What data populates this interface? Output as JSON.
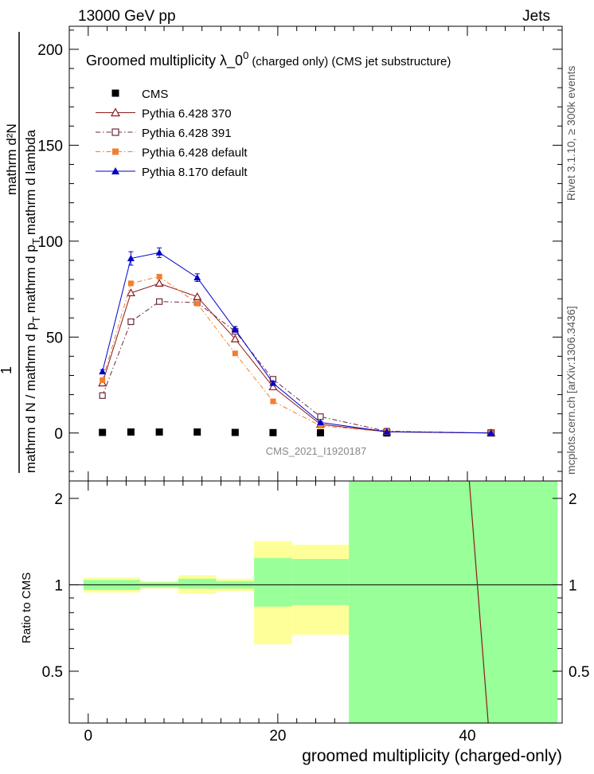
{
  "header": {
    "left": "13000 GeV pp",
    "right": "Jets"
  },
  "side_labels": {
    "rivet": "Rivet 3.1.10, ≥ 300k events",
    "mcplots": "mcplots.cern.ch [arXiv:1306.3436]"
  },
  "analysis_id": "CMS_2021_I1920187",
  "chart_data": [
    {
      "type": "line",
      "title_main": "Groomed multiplicity  λ_0",
      "title_sup": "0",
      "title_tail": "(charged only) (CMS jet substructure)",
      "ylabel_top": "mathrm d²N",
      "ylabel_top_sup": "2",
      "ylabel_main": "mathrm d N / mathrm d p",
      "ylabel_sub": "T",
      "ylabel_main2": "mathrm d p",
      "ylabel_sub2": "T",
      "ylabel_main3": "mathrm d lambda",
      "ylabel_prefix": "1",
      "xlim": [
        -2,
        50
      ],
      "ylim": [
        -25,
        212
      ],
      "yticks": [
        0,
        50,
        100,
        150,
        200
      ],
      "legend_position": "top-left",
      "series": [
        {
          "name": "CMS",
          "color": "#000000",
          "marker": "filled-square",
          "line": "none",
          "x": [
            1.5,
            4.5,
            7.5,
            11.5,
            15.5,
            19.5,
            24.5,
            31.5,
            42.5
          ],
          "y": [
            0.3,
            0.5,
            0.5,
            0.5,
            0.3,
            0.2,
            0.1,
            0.03,
            0.0
          ]
        },
        {
          "name": "Pythia 6.428 370",
          "color": "#8b1a1a",
          "marker": "open-triangle",
          "line": "solid",
          "x": [
            1.5,
            4.5,
            7.5,
            11.5,
            15.5,
            19.5,
            24.5,
            31.5,
            42.5
          ],
          "y": [
            26,
            73,
            78,
            71,
            49,
            24,
            4.5,
            0.6,
            0.0
          ]
        },
        {
          "name": "Pythia 6.428 391",
          "color": "#6b2a3a",
          "marker": "open-square",
          "line": "dashdot",
          "x": [
            1.5,
            4.5,
            7.5,
            11.5,
            15.5,
            19.5,
            24.5,
            31.5,
            42.5
          ],
          "y": [
            19.5,
            58,
            68.5,
            68,
            53,
            28,
            8.5,
            0.9,
            0.0
          ]
        },
        {
          "name": "Pythia 6.428 default",
          "color": "#f07f30",
          "marker": "filled-square",
          "line": "dashdot",
          "x": [
            1.5,
            4.5,
            7.5,
            11.5,
            15.5,
            19.5,
            24.5,
            31.5,
            42.5
          ],
          "y": [
            27.5,
            78,
            81.5,
            67.5,
            41.5,
            16.5,
            3.8,
            0.6,
            0.0
          ]
        },
        {
          "name": "Pythia 8.170 default",
          "color": "#0000cc",
          "marker": "filled-triangle",
          "line": "solid",
          "x": [
            1.5,
            4.5,
            7.5,
            11.5,
            15.5,
            19.5,
            24.5,
            31.5,
            42.5
          ],
          "y": [
            32,
            91,
            94,
            81,
            54,
            26,
            5.5,
            0.7,
            0.0
          ],
          "err": [
            1,
            3.5,
            2.5,
            2,
            1.5,
            1,
            0.4,
            0.1,
            0
          ]
        }
      ]
    },
    {
      "type": "area",
      "ylabel": "Ratio to CMS",
      "xlabel": "groomed multiplicity (charged-only)",
      "xlim": [
        -2,
        50
      ],
      "ylim": [
        0.33,
        2.3
      ],
      "xticks": [
        0,
        20,
        40
      ],
      "yticks": [
        0.5,
        1,
        2
      ],
      "ytick_labels": [
        "0.5",
        "1",
        "2"
      ],
      "bands": [
        {
          "x0": -0.5,
          "x1": 3.5,
          "inner": [
            0.96,
            1.04
          ],
          "outer": [
            0.94,
            1.06
          ]
        },
        {
          "x0": 3.5,
          "x1": 5.5,
          "inner": [
            0.96,
            1.04
          ],
          "outer": [
            0.94,
            1.06
          ]
        },
        {
          "x0": 5.5,
          "x1": 9.5,
          "inner": [
            0.98,
            1.02
          ],
          "outer": [
            0.97,
            1.03
          ]
        },
        {
          "x0": 9.5,
          "x1": 13.5,
          "inner": [
            0.97,
            1.05
          ],
          "outer": [
            0.93,
            1.08
          ]
        },
        {
          "x0": 13.5,
          "x1": 17.5,
          "inner": [
            0.97,
            1.03
          ],
          "outer": [
            0.95,
            1.05
          ]
        },
        {
          "x0": 17.5,
          "x1": 21.5,
          "inner": [
            0.84,
            1.24
          ],
          "outer": [
            0.62,
            1.42
          ]
        },
        {
          "x0": 21.5,
          "x1": 27.5,
          "inner": [
            0.85,
            1.23
          ],
          "outer": [
            0.67,
            1.38
          ]
        },
        {
          "x0": 27.5,
          "x1": 49.5,
          "inner": [
            0.33,
            2.3
          ],
          "outer": [
            0.33,
            2.3
          ]
        }
      ],
      "band_colors": {
        "inner": "#99ff99",
        "outer": "#ffff99"
      },
      "ratio_line": {
        "color": "#8b1a1a",
        "x": [
          40.2,
          42.2
        ],
        "y": [
          2.3,
          0.33
        ]
      }
    }
  ]
}
